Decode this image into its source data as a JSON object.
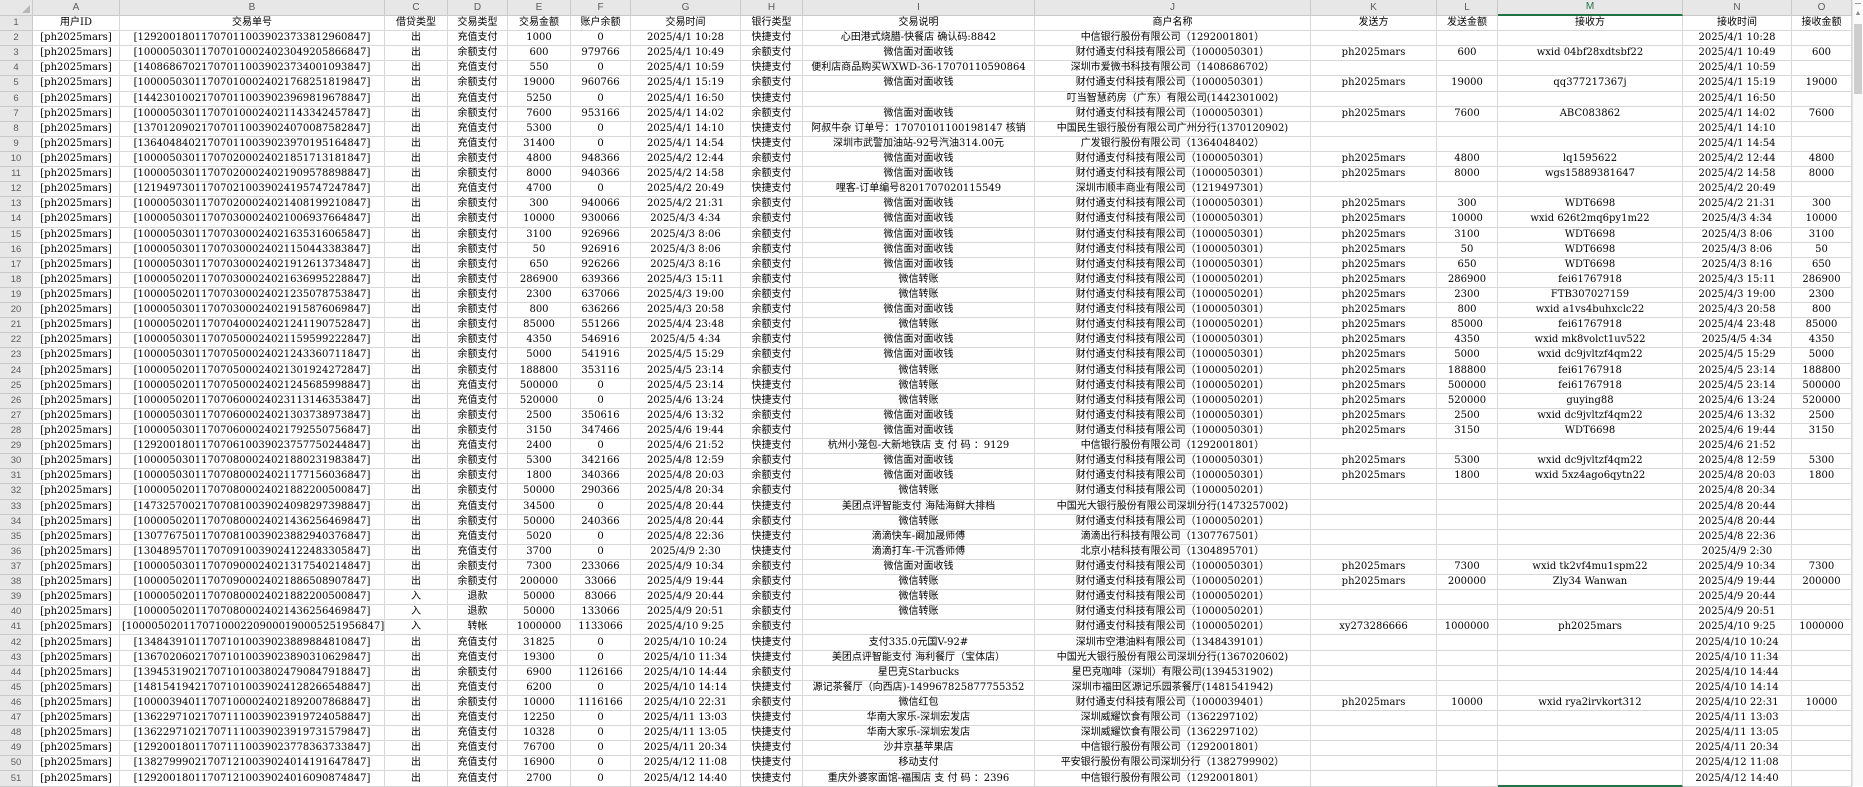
{
  "sheet": {
    "column_letters": [
      "A",
      "B",
      "C",
      "D",
      "E",
      "F",
      "G",
      "H",
      "I",
      "J",
      "K",
      "L",
      "M",
      "N",
      "O"
    ],
    "selected_column": "M",
    "header_row": [
      "用户ID",
      "交易单号",
      "借贷类型",
      "交易类型",
      "交易金额",
      "账户余额",
      "交易时间",
      "银行类型",
      "交易说明",
      "商户名称",
      "发送方",
      "发送金额",
      "接收方",
      "接收时间",
      "接收金额"
    ],
    "rows": [
      [
        "[ph2025mars]",
        "[129200180117070110039023733812960847]",
        "出",
        "充值支付",
        "1000",
        "0",
        "2025/4/1 10:28",
        "快捷支付",
        "心田港式烧腊-快餐店 确认码:8842",
        "中信银行股份有限公司（1292001801）",
        "",
        "",
        "",
        "2025/4/1 10:28",
        ""
      ],
      [
        "[ph2025mars]",
        "[100005030117070100024023049205866847]",
        "出",
        "余额支付",
        "600",
        "979766",
        "2025/4/1 10:49",
        "余额支付",
        "微信面对面收钱",
        "财付通支付科技有限公司（1000050301）",
        "ph2025mars",
        "600",
        "wxid 04bf28xdtsbf22",
        "2025/4/1 10:49",
        "600"
      ],
      [
        "[ph2025mars]",
        "[140868670217070110039023734001093847]",
        "出",
        "充值支付",
        "550",
        "0",
        "2025/4/1 10:59",
        "快捷支付",
        "便利店商品购买WXWD-36-17070110590864",
        "深圳市爱微书科技有限公司（1408686702）",
        "",
        "",
        "",
        "2025/4/1 10:59",
        ""
      ],
      [
        "[ph2025mars]",
        "[100005030117070100024021768251819847]",
        "出",
        "余额支付",
        "19000",
        "960766",
        "2025/4/1 15:19",
        "余额支付",
        "微信面对面收钱",
        "财付通支付科技有限公司（1000050301）",
        "ph2025mars",
        "19000",
        "qq377217367j",
        "2025/4/1 15:19",
        "19000"
      ],
      [
        "[ph2025mars]",
        "[144230100217070110039023969819678847]",
        "出",
        "充值支付",
        "5250",
        "0",
        "2025/4/1 16:50",
        "快捷支付",
        "",
        "叮当智慧药房（广东）有限公司(1442301002)",
        "",
        "",
        "",
        "2025/4/1 16:50",
        ""
      ],
      [
        "[ph2025mars]",
        "[100005030117070100024021143342457847]",
        "出",
        "余额支付",
        "7600",
        "953166",
        "2025/4/1 14:02",
        "余额支付",
        "微信面对面收钱",
        "财付通支付科技有限公司（1000050301）",
        "ph2025mars",
        "7600",
        "ABC083862",
        "2025/4/1 14:02",
        "7600"
      ],
      [
        "[ph2025mars]",
        "[137012090217070110039024070087582847]",
        "出",
        "充值支付",
        "5300",
        "0",
        "2025/4/1 14:10",
        "快捷支付",
        "阿叔牛杂 订单号：17070101100198147 核销",
        "中国民生银行股份有限公司广州分行(1370120902)",
        "",
        "",
        "",
        "2025/4/1 14:10",
        ""
      ],
      [
        "[ph2025mars]",
        "[136404840217070110039023970195164847]",
        "出",
        "充值支付",
        "31400",
        "0",
        "2025/4/1 14:54",
        "快捷支付",
        "深圳市武警加油站-92号汽油314.00元",
        "广发银行股份有限公司（1364048402）",
        "",
        "",
        "",
        "2025/4/1 14:54",
        ""
      ],
      [
        "[ph2025mars]",
        "[100005030117070200024021851713181847]",
        "出",
        "余额支付",
        "4800",
        "948366",
        "2025/4/2 12:44",
        "余额支付",
        "微信面对面收钱",
        "财付通支付科技有限公司（1000050301）",
        "ph2025mars",
        "4800",
        "lq1595622",
        "2025/4/2 12:44",
        "4800"
      ],
      [
        "[ph2025mars]",
        "[100005030117070200024021909578898847]",
        "出",
        "余额支付",
        "8000",
        "940366",
        "2025/4/2 14:58",
        "余额支付",
        "微信面对面收钱",
        "财付通支付科技有限公司（1000050301）",
        "ph2025mars",
        "8000",
        "wgs15889381647",
        "2025/4/2 14:58",
        "8000"
      ],
      [
        "[ph2025mars]",
        "[121949730117070210039024195747247847]",
        "出",
        "充值支付",
        "4700",
        "0",
        "2025/4/2 20:49",
        "快捷支付",
        "哩客-订单编号8201707020115549",
        "深圳市顺丰商业有限公司（1219497301）",
        "",
        "",
        "",
        "2025/4/2 20:49",
        ""
      ],
      [
        "[ph2025mars]",
        "[100005030117070200024021408199210847]",
        "出",
        "余额支付",
        "300",
        "940066",
        "2025/4/2 21:31",
        "余额支付",
        "微信面对面收钱",
        "财付通支付科技有限公司（1000050301）",
        "ph2025mars",
        "300",
        "WDT6698",
        "2025/4/2 21:31",
        "300"
      ],
      [
        "[ph2025mars]",
        "[100005030117070300024021006937664847]",
        "出",
        "余额支付",
        "10000",
        "930066",
        "2025/4/3 4:34",
        "余额支付",
        "微信面对面收钱",
        "财付通支付科技有限公司（1000050301）",
        "ph2025mars",
        "10000",
        "wxid 626t2mq6py1m22",
        "2025/4/3 4:34",
        "10000"
      ],
      [
        "[ph2025mars]",
        "[100005030117070300024021635316065847]",
        "出",
        "余额支付",
        "3100",
        "926966",
        "2025/4/3 8:06",
        "余额支付",
        "微信面对面收钱",
        "财付通支付科技有限公司（1000050301）",
        "ph2025mars",
        "3100",
        "WDT6698",
        "2025/4/3 8:06",
        "3100"
      ],
      [
        "[ph2025mars]",
        "[100005030117070300024021150443383847]",
        "出",
        "余额支付",
        "50",
        "926916",
        "2025/4/3 8:06",
        "余额支付",
        "微信面对面收钱",
        "财付通支付科技有限公司（1000050301）",
        "ph2025mars",
        "50",
        "WDT6698",
        "2025/4/3 8:06",
        "50"
      ],
      [
        "[ph2025mars]",
        "[100005030117070300024021912613734847]",
        "出",
        "余额支付",
        "650",
        "926266",
        "2025/4/3 8:16",
        "余额支付",
        "微信面对面收钱",
        "财付通支付科技有限公司（1000050301）",
        "ph2025mars",
        "650",
        "WDT6698",
        "2025/4/3 8:16",
        "650"
      ],
      [
        "[ph2025mars]",
        "[100005020117070300024021636995228847]",
        "出",
        "余额支付",
        "286900",
        "639366",
        "2025/4/3 15:11",
        "余额支付",
        "微信转账",
        "财付通支付科技有限公司（1000050201）",
        "ph2025mars",
        "286900",
        "fei61767918",
        "2025/4/3 15:11",
        "286900"
      ],
      [
        "[ph2025mars]",
        "[100005020117070300024021235078753847]",
        "出",
        "余额支付",
        "2300",
        "637066",
        "2025/4/3 19:00",
        "余额支付",
        "微信转账",
        "财付通支付科技有限公司（1000050201）",
        "ph2025mars",
        "2300",
        "FTB307027159",
        "2025/4/3 19:00",
        "2300"
      ],
      [
        "[ph2025mars]",
        "[100005030117070300024021915876069847]",
        "出",
        "余额支付",
        "800",
        "636266",
        "2025/4/3 20:58",
        "余额支付",
        "微信面对面收钱",
        "财付通支付科技有限公司（1000050301）",
        "ph2025mars",
        "800",
        "wxid a1vs4buhxclc22",
        "2025/4/3 20:58",
        "800"
      ],
      [
        "[ph2025mars]",
        "[100005020117070400024021241190752847]",
        "出",
        "余额支付",
        "85000",
        "551266",
        "2025/4/4 23:48",
        "余额支付",
        "微信转账",
        "财付通支付科技有限公司（1000050201）",
        "ph2025mars",
        "85000",
        "fei61767918",
        "2025/4/4 23:48",
        "85000"
      ],
      [
        "[ph2025mars]",
        "[100005030117070500024021159599222847]",
        "出",
        "余额支付",
        "4350",
        "546916",
        "2025/4/5 4:34",
        "余额支付",
        "微信面对面收钱",
        "财付通支付科技有限公司（1000050301）",
        "ph2025mars",
        "4350",
        "wxid mk8volct1uv522",
        "2025/4/5 4:34",
        "4350"
      ],
      [
        "[ph2025mars]",
        "[100005030117070500024021243360711847]",
        "出",
        "余额支付",
        "5000",
        "541916",
        "2025/4/5 15:29",
        "余额支付",
        "微信面对面收钱",
        "财付通支付科技有限公司（1000050301）",
        "ph2025mars",
        "5000",
        "wxid dc9jvltzf4qm22",
        "2025/4/5 15:29",
        "5000"
      ],
      [
        "[ph2025mars]",
        "[100005020117070500024021301924272847]",
        "出",
        "余额支付",
        "188800",
        "353116",
        "2025/4/5 23:14",
        "余额支付",
        "微信转账",
        "财付通支付科技有限公司（1000050201）",
        "ph2025mars",
        "188800",
        "fei61767918",
        "2025/4/5 23:14",
        "188800"
      ],
      [
        "[ph2025mars]",
        "[100005020117070500024021245685998847]",
        "出",
        "充值支付",
        "500000",
        "0",
        "2025/4/5 23:14",
        "快捷支付",
        "微信转账",
        "财付通支付科技有限公司（1000050201）",
        "ph2025mars",
        "500000",
        "fei61767918",
        "2025/4/5 23:14",
        "500000"
      ],
      [
        "[ph2025mars]",
        "[100005020117070600024023113146353847]",
        "出",
        "充值支付",
        "520000",
        "0",
        "2025/4/6 13:24",
        "快捷支付",
        "微信转账",
        "财付通支付科技有限公司（1000050201）",
        "ph2025mars",
        "520000",
        "guying88",
        "2025/4/6 13:24",
        "520000"
      ],
      [
        "[ph2025mars]",
        "[100005030117070600024021303738973847]",
        "出",
        "余额支付",
        "2500",
        "350616",
        "2025/4/6 13:32",
        "余额支付",
        "微信面对面收钱",
        "财付通支付科技有限公司（1000050301）",
        "ph2025mars",
        "2500",
        "wxid dc9jvltzf4qm22",
        "2025/4/6 13:32",
        "2500"
      ],
      [
        "[ph2025mars]",
        "[100005030117070600024021792550756847]",
        "出",
        "余额支付",
        "3150",
        "347466",
        "2025/4/6 19:44",
        "余额支付",
        "微信面对面收钱",
        "财付通支付科技有限公司（1000050301）",
        "ph2025mars",
        "3150",
        "WDT6698",
        "2025/4/6 19:44",
        "3150"
      ],
      [
        "[ph2025mars]",
        "[129200180117070610039023757750244847]",
        "出",
        "充值支付",
        "2400",
        "0",
        "2025/4/6 21:52",
        "快捷支付",
        "杭州小笼包-大新地铁店 支 付 码 ：9129",
        "中信银行股份有限公司（1292001801）",
        "",
        "",
        "",
        "2025/4/6 21:52",
        ""
      ],
      [
        "[ph2025mars]",
        "[100005030117070800024021880231983847]",
        "出",
        "余额支付",
        "5300",
        "342166",
        "2025/4/8 12:59",
        "余额支付",
        "微信面对面收钱",
        "财付通支付科技有限公司（1000050301）",
        "ph2025mars",
        "5300",
        "wxid dc9jvltzf4qm22",
        "2025/4/8 12:59",
        "5300"
      ],
      [
        "[ph2025mars]",
        "[100005030117070800024021177156036847]",
        "出",
        "余额支付",
        "1800",
        "340366",
        "2025/4/8 20:03",
        "余额支付",
        "微信面对面收钱",
        "财付通支付科技有限公司（1000050301）",
        "ph2025mars",
        "1800",
        "wxid 5xz4ago6qytn22",
        "2025/4/8 20:03",
        "1800"
      ],
      [
        "[ph2025mars]",
        "[100005020117070800024021882200500847]",
        "出",
        "余额支付",
        "50000",
        "290366",
        "2025/4/8 20:34",
        "余额支付",
        "微信转账",
        "财付通支付科技有限公司（1000050201）",
        "",
        "",
        "",
        "2025/4/8 20:34",
        ""
      ],
      [
        "[ph2025mars]",
        "[147325700217070810039024098297398847]",
        "出",
        "充值支付",
        "34500",
        "0",
        "2025/4/8 20:44",
        "快捷支付",
        "美团点评智能支付 海陆海鲜大排档",
        "中国光大银行股份有限公司深圳分行(1473257002)",
        "",
        "",
        "",
        "2025/4/8 20:44",
        ""
      ],
      [
        "[ph2025mars]",
        "[100005020117070800024021436256469847]",
        "出",
        "余额支付",
        "50000",
        "240366",
        "2025/4/8 20:44",
        "余额支付",
        "微信转账",
        "财付通支付科技有限公司（1000050201）",
        "",
        "",
        "",
        "2025/4/8 20:44",
        ""
      ],
      [
        "[ph2025mars]",
        "[130776750117070810039023882940376847]",
        "出",
        "充值支付",
        "5020",
        "0",
        "2025/4/8 22:36",
        "快捷支付",
        "滴滴快车-阚加晟师傅",
        "滴滴出行科技有限公司（1307767501）",
        "",
        "",
        "",
        "2025/4/8 22:36",
        ""
      ],
      [
        "[ph2025mars]",
        "[130489570117070910039024122483305847]",
        "出",
        "充值支付",
        "3700",
        "0",
        "2025/4/9 2:30",
        "快捷支付",
        "滴滴打车-干沉香师傅",
        "北京小桔科技有限公司（1304895701）",
        "",
        "",
        "",
        "2025/4/9 2:30",
        ""
      ],
      [
        "[ph2025mars]",
        "[100005030117070900024021317540214847]",
        "出",
        "余额支付",
        "7300",
        "233066",
        "2025/4/9 10:34",
        "余额支付",
        "微信面对面收钱",
        "财付通支付科技有限公司（1000050301）",
        "ph2025mars",
        "7300",
        "wxid tk2vf4mu1spm22",
        "2025/4/9 10:34",
        "7300"
      ],
      [
        "[ph2025mars]",
        "[100005020117070900024021886508907847]",
        "出",
        "余额支付",
        "200000",
        "33066",
        "2025/4/9 19:44",
        "余额支付",
        "微信转账",
        "财付通支付科技有限公司（1000050201）",
        "ph2025mars",
        "200000",
        "Zly34 Wanwan",
        "2025/4/9 19:44",
        "200000"
      ],
      [
        "[ph2025mars]",
        "[100005020117070800024021882200500847]",
        "入",
        "退款",
        "50000",
        "83066",
        "2025/4/9 20:44",
        "余额支付",
        "微信转账",
        "财付通支付科技有限公司（1000050201）",
        "",
        "",
        "",
        "2025/4/9 20:44",
        ""
      ],
      [
        "[ph2025mars]",
        "[100005020117070800024021436256469847]",
        "入",
        "退款",
        "50000",
        "133066",
        "2025/4/9 20:51",
        "余额支付",
        "微信转账",
        "财付通支付科技有限公司（1000050201）",
        "",
        "",
        "",
        "2025/4/9 20:51",
        ""
      ],
      [
        "[ph2025mars]",
        "[1000050201170710002209000190005251956847]",
        "入",
        "转帐",
        "1000000",
        "1133066",
        "2025/4/10 9:25",
        "余额支付",
        "",
        "财付通支付科技有限公司（1000050201）",
        "xy273286666",
        "1000000",
        "ph2025mars",
        "2025/4/10 9:25",
        "1000000"
      ],
      [
        "[ph2025mars]",
        "[134843910117071010039023889884810847]",
        "出",
        "充值支付",
        "31825",
        "0",
        "2025/4/10 10:24",
        "快捷支付",
        "支付335.0元国V-92#",
        "深圳市空港油料有限公司（1348439101）",
        "",
        "",
        "",
        "2025/4/10 10:24",
        ""
      ],
      [
        "[ph2025mars]",
        "[136702060217071010039023890310629847]",
        "出",
        "充值支付",
        "19300",
        "0",
        "2025/4/10 11:34",
        "快捷支付",
        "美团点评智能支付 海利餐厅（宝体店）",
        "中国光大银行股份有限公司深圳分行(1367020602)",
        "",
        "",
        "",
        "2025/4/10 11:34",
        ""
      ],
      [
        "[ph2025mars]",
        "[139453190217071010038024790847918847]",
        "出",
        "余额支付",
        "6900",
        "1126166",
        "2025/4/10 14:44",
        "余额支付",
        "星巴克Starbucks",
        "星巴克咖啡（深圳）有限公司(1394531902)",
        "",
        "",
        "",
        "2025/4/10 14:44",
        ""
      ],
      [
        "[ph2025mars]",
        "[148154194217071010039024128266548847]",
        "出",
        "充值支付",
        "6200",
        "0",
        "2025/4/10 14:14",
        "快捷支付",
        "源记茶餐厅（向西店)-149967825877755352",
        "深圳市福田区源记乐园茶餐厅(1481541942)",
        "",
        "",
        "",
        "2025/4/10 14:14",
        ""
      ],
      [
        "[ph2025mars]",
        "[100003940117071000024021892007868847]",
        "出",
        "余额支付",
        "10000",
        "1116166",
        "2025/4/10 22:31",
        "余额支付",
        "微信红包",
        "财付通支付科技有限公司（1000039401）",
        "ph2025mars",
        "10000",
        "wxid rya2irvkort312",
        "2025/4/10 22:31",
        "10000"
      ],
      [
        "[ph2025mars]",
        "[136229710217071110039023919724058847]",
        "出",
        "充值支付",
        "12250",
        "0",
        "2025/4/11 13:03",
        "快捷支付",
        "华南大家乐-深圳宏发店",
        "深圳威耀饮食有限公司（1362297102）",
        "",
        "",
        "",
        "2025/4/11 13:03",
        ""
      ],
      [
        "[ph2025mars]",
        "[136229710217071110039023919731579847]",
        "出",
        "充值支付",
        "10328",
        "0",
        "2025/4/11 13:05",
        "快捷支付",
        "华南大家乐-深圳宏发店",
        "深圳威耀饮食有限公司（1362297102）",
        "",
        "",
        "",
        "2025/4/11 13:05",
        ""
      ],
      [
        "[ph2025mars]",
        "[129200180117071110039023778363733847]",
        "出",
        "充值支付",
        "76700",
        "0",
        "2025/4/11 20:34",
        "快捷支付",
        "沙井京基苹果店",
        "中信银行股份有限公司（1292001801）",
        "",
        "",
        "",
        "2025/4/11 20:34",
        ""
      ],
      [
        "[ph2025mars]",
        "[138279990217071210039024014191647847]",
        "出",
        "充值支付",
        "16900",
        "0",
        "2025/4/12 11:08",
        "快捷支付",
        "移动支付",
        "平安银行股份有限公司深圳分行（1382799902）",
        "",
        "",
        "",
        "2025/4/12 11:08",
        ""
      ],
      [
        "[ph2025mars]",
        "[129200180117071210039024016090874847]",
        "出",
        "充值支付",
        "2700",
        "0",
        "2025/4/12 14:40",
        "快捷支付",
        "重庆外婆家面馆-福围店 支 付 码 ：2396",
        "中信银行股份有限公司（1292001801）",
        "",
        "",
        "",
        "2025/4/12 14:40",
        ""
      ]
    ]
  },
  "scrollbar": {
    "up_arrow_icon": "▲"
  },
  "colors": {
    "selection_green": "#217346",
    "grid_line": "#d8d8d8",
    "header_bg": "#e7e7e7",
    "header_text": "#5c5c5c"
  }
}
